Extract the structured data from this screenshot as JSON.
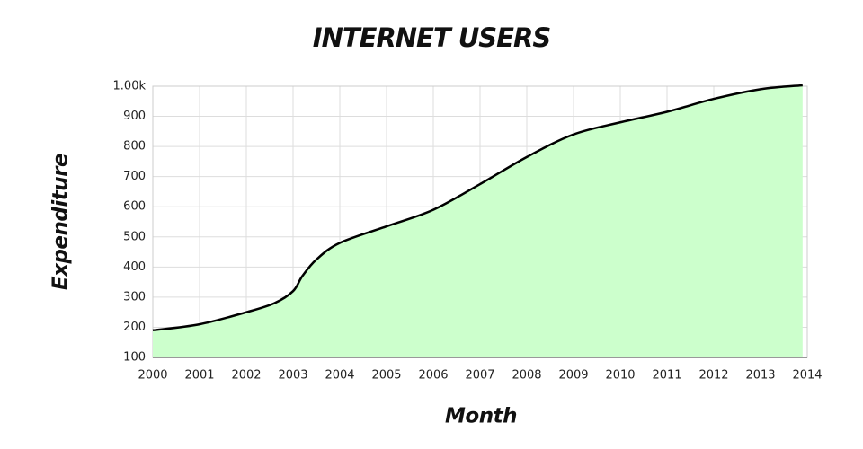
{
  "chart_data": {
    "type": "area",
    "title": "INTERNET USERS",
    "x_label": "Month",
    "y_label": "Expenditure",
    "x": [
      2000,
      2001,
      2002,
      2002.6,
      2003,
      2003.2,
      2003.5,
      2004,
      2005,
      2006,
      2007,
      2008,
      2009,
      2010,
      2011,
      2012,
      2013,
      2013.9
    ],
    "values": [
      190,
      210,
      250,
      280,
      320,
      370,
      425,
      480,
      535,
      590,
      675,
      765,
      840,
      880,
      915,
      958,
      990,
      1003
    ],
    "color": "#ccffcc",
    "line_color": "#000000",
    "xlim": [
      2000,
      2014
    ],
    "xticks": [
      2000,
      2001,
      2002,
      2003,
      2004,
      2005,
      2006,
      2007,
      2008,
      2009,
      2010,
      2011,
      2012,
      2013,
      2014
    ],
    "ylim": [
      100,
      1000
    ],
    "yticks": [
      100,
      200,
      300,
      400,
      500,
      600,
      700,
      800,
      900,
      {
        "value": 1000,
        "label": "1.00k"
      }
    ],
    "grid": true
  }
}
